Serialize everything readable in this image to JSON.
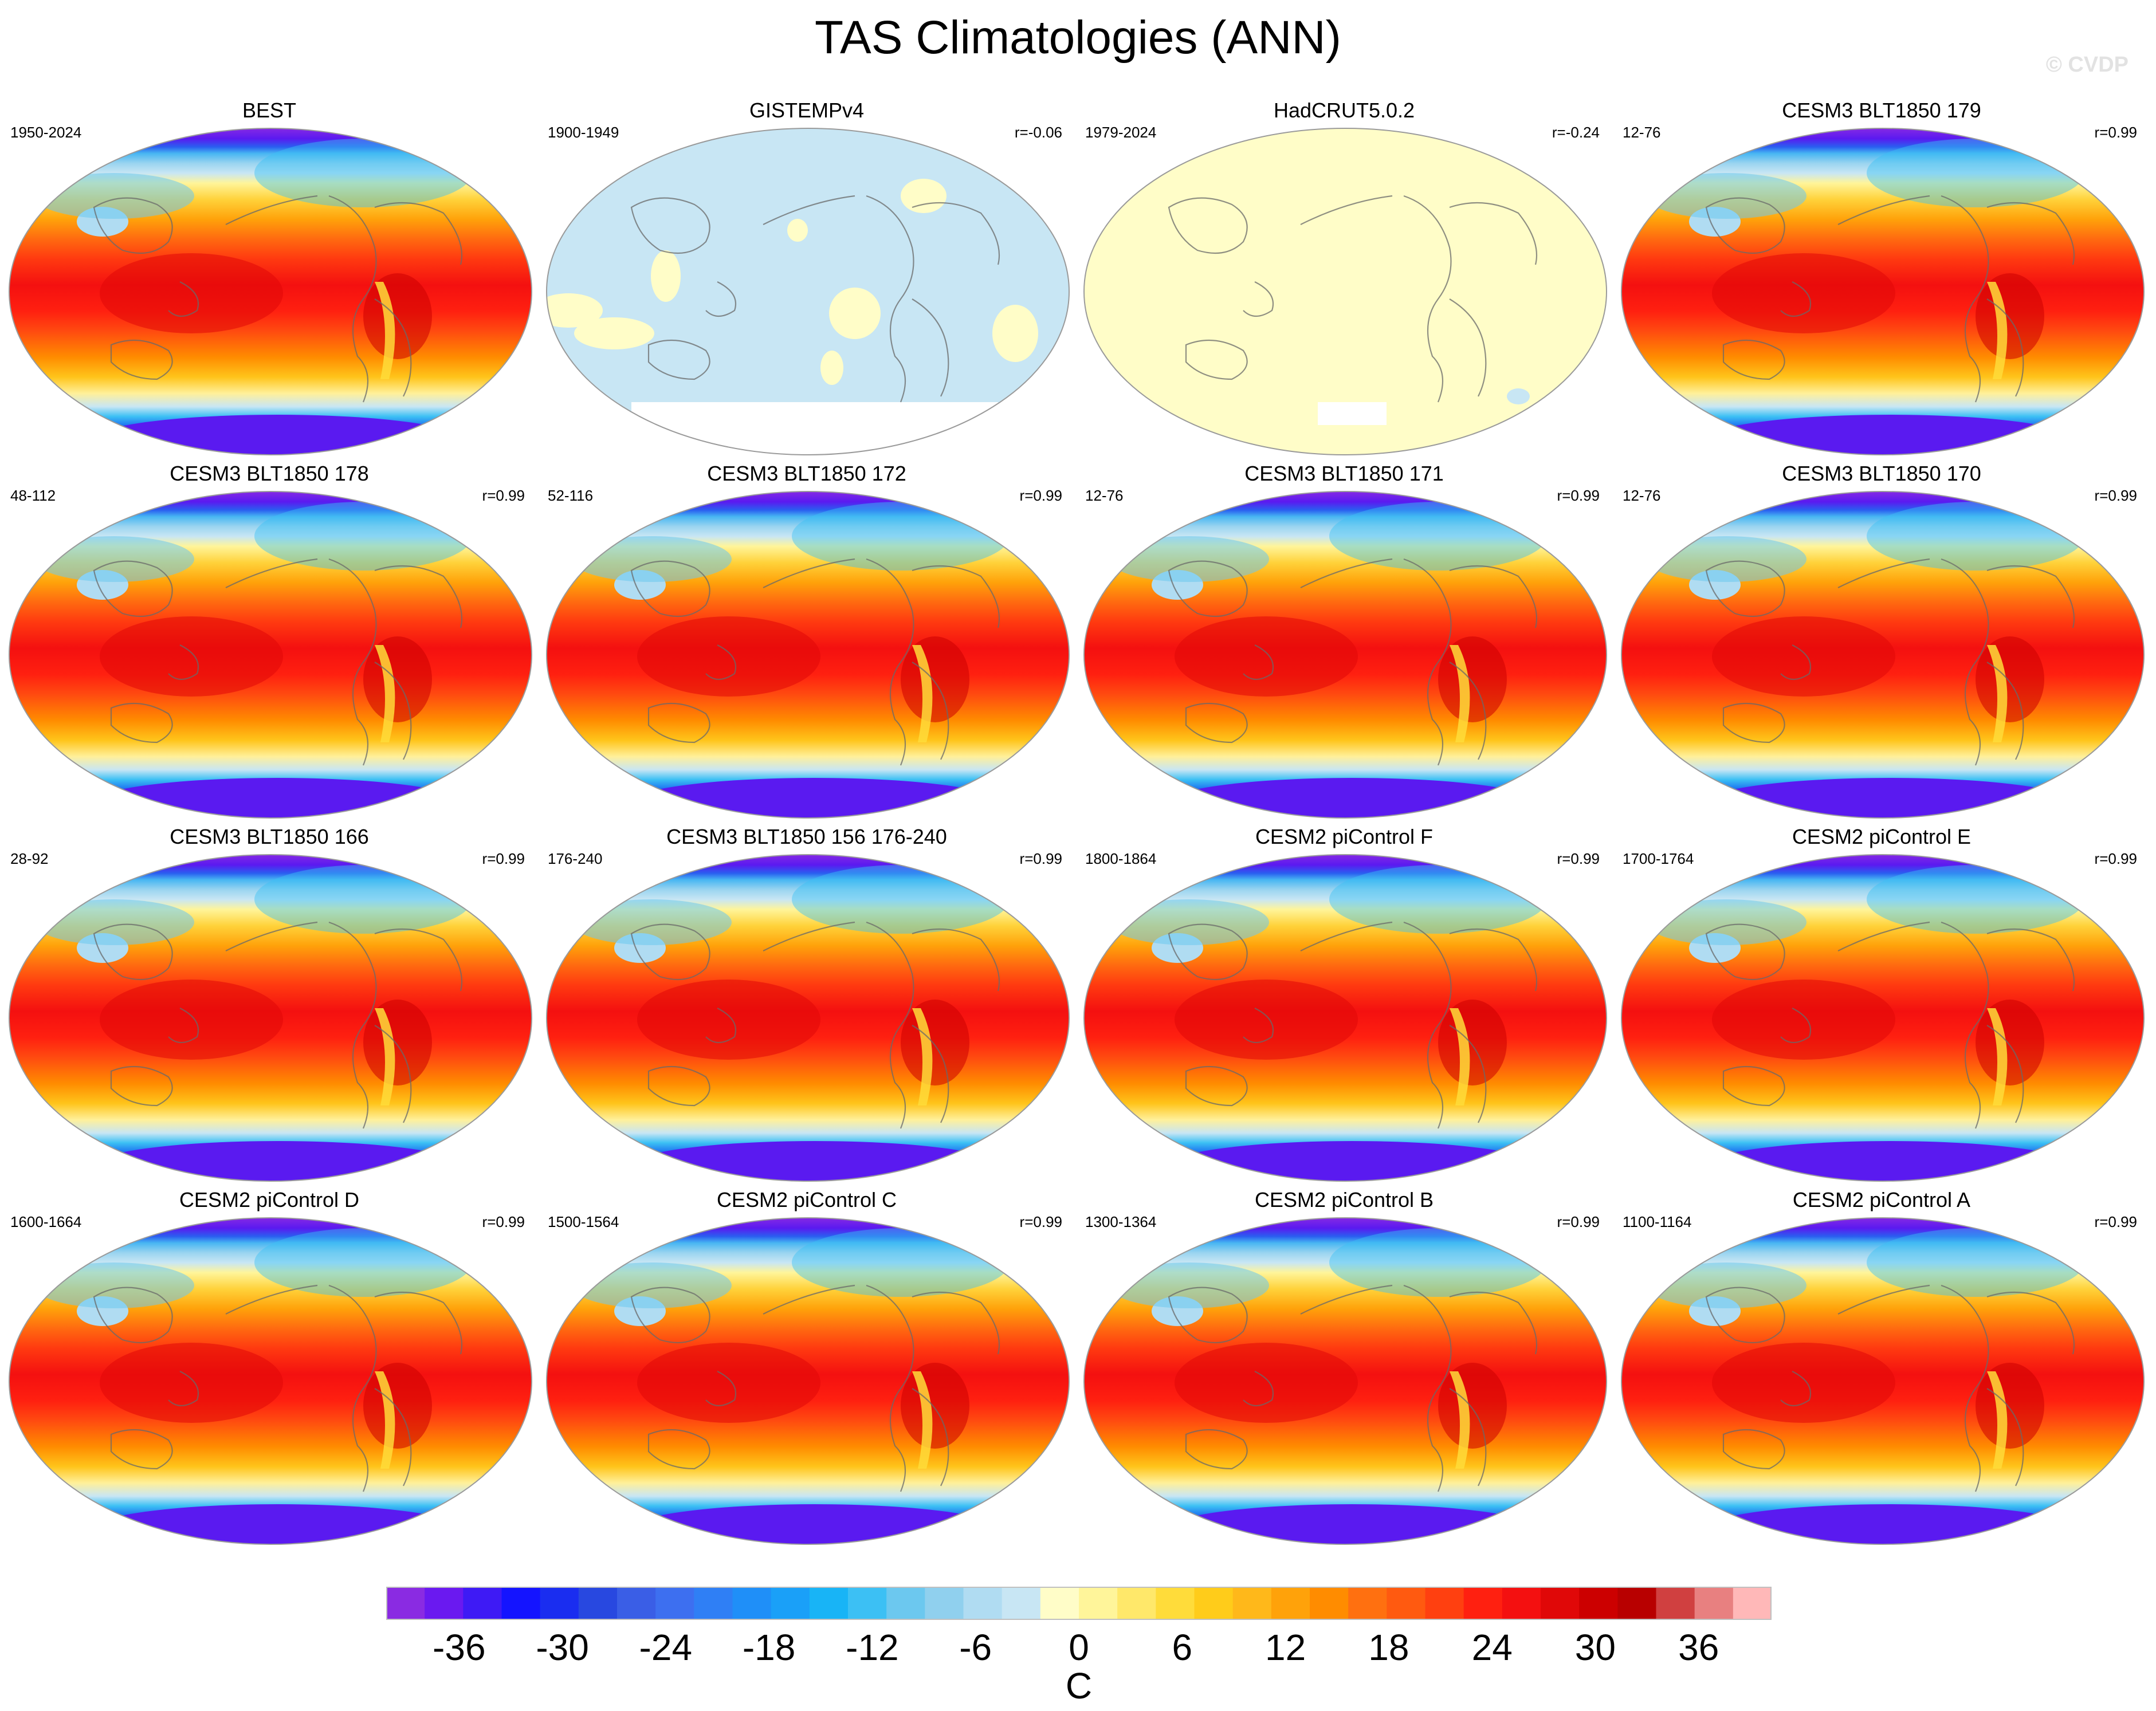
{
  "title": "TAS Climatologies (ANN)",
  "watermark": "© CVDP",
  "panels": [
    {
      "title": "BEST",
      "left": "1950-2024",
      "right": "",
      "style": "model"
    },
    {
      "title": "GISTEMPv4",
      "left": "1900-1949",
      "right": "r=-0.06",
      "style": "gistemp"
    },
    {
      "title": "HadCRUT5.0.2",
      "left": "1979-2024",
      "right": "r=-0.24",
      "style": "hadcrut"
    },
    {
      "title": "CESM3 BLT1850 179",
      "left": "12-76",
      "right": "r=0.99",
      "style": "model"
    },
    {
      "title": "CESM3 BLT1850 178",
      "left": "48-112",
      "right": "r=0.99",
      "style": "model"
    },
    {
      "title": "CESM3 BLT1850 172",
      "left": "52-116",
      "right": "r=0.99",
      "style": "model"
    },
    {
      "title": "CESM3 BLT1850 171",
      "left": "12-76",
      "right": "r=0.99",
      "style": "model"
    },
    {
      "title": "CESM3 BLT1850 170",
      "left": "12-76",
      "right": "r=0.99",
      "style": "model"
    },
    {
      "title": "CESM3 BLT1850 166",
      "left": "28-92",
      "right": "r=0.99",
      "style": "model"
    },
    {
      "title": "CESM3 BLT1850 156 176-240",
      "left": "176-240",
      "right": "r=0.99",
      "style": "model"
    },
    {
      "title": "CESM2 piControl F",
      "left": "1800-1864",
      "right": "r=0.99",
      "style": "model"
    },
    {
      "title": "CESM2 piControl E",
      "left": "1700-1764",
      "right": "r=0.99",
      "style": "model"
    },
    {
      "title": "CESM2 piControl D",
      "left": "1600-1664",
      "right": "r=0.99",
      "style": "model"
    },
    {
      "title": "CESM2 piControl C",
      "left": "1500-1564",
      "right": "r=0.99",
      "style": "model"
    },
    {
      "title": "CESM2 piControl B",
      "left": "1300-1364",
      "right": "r=0.99",
      "style": "model"
    },
    {
      "title": "CESM2 piControl A",
      "left": "1100-1164",
      "right": "r=0.99",
      "style": "model"
    }
  ],
  "colorbar": {
    "units": "C",
    "levels": [
      -40,
      40
    ],
    "step": 2,
    "tick_values": [
      -36,
      -30,
      -24,
      -18,
      -12,
      -6,
      0,
      6,
      12,
      18,
      24,
      30,
      36
    ],
    "tick_labels": [
      "-36",
      "-30",
      "-24",
      "-18",
      "-12",
      "-6",
      "0",
      "6",
      "12",
      "18",
      "24",
      "30",
      "36"
    ],
    "colors": [
      "#8a2be2",
      "#6a19f0",
      "#3e1af5",
      "#1414ff",
      "#1a2df0",
      "#2848e0",
      "#3a5ee6",
      "#3d6ff0",
      "#2f7ff5",
      "#1f8ff8",
      "#1aa0f8",
      "#18b4f6",
      "#3cc0f4",
      "#6cc8ef",
      "#90d0ee",
      "#b0dcf2",
      "#c8e6f4",
      "#fffdc8",
      "#fff59a",
      "#ffe86a",
      "#ffdc3a",
      "#ffcc1a",
      "#ffb81a",
      "#ffa20a",
      "#ff8c00",
      "#ff7010",
      "#ff5a10",
      "#ff4010",
      "#ff2010",
      "#f41010",
      "#e00808",
      "#cc0000",
      "#b80000",
      "#d04040",
      "#e88080",
      "#ffb8b8"
    ]
  },
  "chart_data": {
    "type": "heatmap",
    "title": "TAS Climatologies (ANN)",
    "units": "C",
    "colorbar_range": [
      -40,
      40
    ],
    "colorbar_interval": 2,
    "panels": [
      {
        "name": "BEST",
        "period": "1950-2024",
        "pattern_correlation": null
      },
      {
        "name": "GISTEMPv4",
        "period": "1900-1949",
        "pattern_correlation": -0.06
      },
      {
        "name": "HadCRUT5.0.2",
        "period": "1979-2024",
        "pattern_correlation": -0.24
      },
      {
        "name": "CESM3 BLT1850 179",
        "period": "12-76",
        "pattern_correlation": 0.99
      },
      {
        "name": "CESM3 BLT1850 178",
        "period": "48-112",
        "pattern_correlation": 0.99
      },
      {
        "name": "CESM3 BLT1850 172",
        "period": "52-116",
        "pattern_correlation": 0.99
      },
      {
        "name": "CESM3 BLT1850 171",
        "period": "12-76",
        "pattern_correlation": 0.99
      },
      {
        "name": "CESM3 BLT1850 170",
        "period": "12-76",
        "pattern_correlation": 0.99
      },
      {
        "name": "CESM3 BLT1850 166",
        "period": "28-92",
        "pattern_correlation": 0.99
      },
      {
        "name": "CESM3 BLT1850 156 176-240",
        "period": "176-240",
        "pattern_correlation": 0.99
      },
      {
        "name": "CESM2 piControl F",
        "period": "1800-1864",
        "pattern_correlation": 0.99
      },
      {
        "name": "CESM2 piControl E",
        "period": "1700-1764",
        "pattern_correlation": 0.99
      },
      {
        "name": "CESM2 piControl D",
        "period": "1600-1664",
        "pattern_correlation": 0.99
      },
      {
        "name": "CESM2 piControl C",
        "period": "1500-1564",
        "pattern_correlation": 0.99
      },
      {
        "name": "CESM2 piControl B",
        "period": "1300-1364",
        "pattern_correlation": 0.99
      },
      {
        "name": "CESM2 piControl A",
        "period": "1100-1164",
        "pattern_correlation": 0.99
      }
    ]
  }
}
